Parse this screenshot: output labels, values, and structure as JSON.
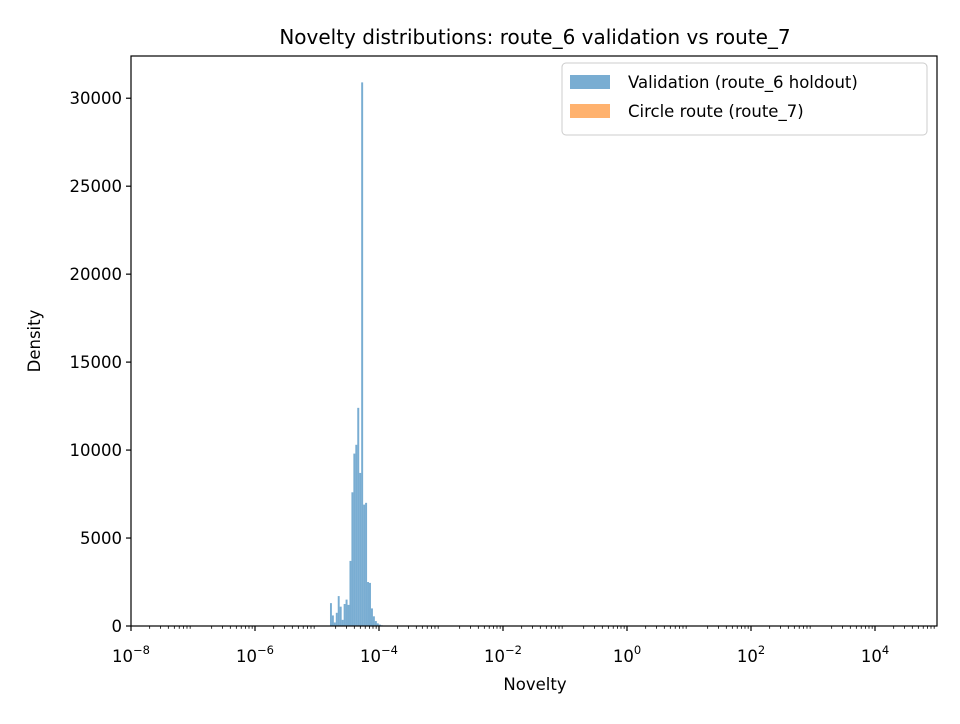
{
  "chart_data": {
    "type": "bar",
    "title": "Novelty distributions: route_6 validation vs route_7",
    "xlabel": "Novelty",
    "ylabel": "Density",
    "x_scale": "log",
    "xlim": [
      1e-08,
      100000.0
    ],
    "ylim": [
      0,
      32400
    ],
    "grid": false,
    "legend_position": "top-right",
    "x_ticks": [
      {
        "value": 1e-08,
        "base": "10",
        "exp": "−8"
      },
      {
        "value": 1e-06,
        "base": "10",
        "exp": "−6"
      },
      {
        "value": 0.0001,
        "base": "10",
        "exp": "−4"
      },
      {
        "value": 0.01,
        "base": "10",
        "exp": "−2"
      },
      {
        "value": 1,
        "base": "10",
        "exp": "0"
      },
      {
        "value": 100,
        "base": "10",
        "exp": "2"
      },
      {
        "value": 10000,
        "base": "10",
        "exp": "4"
      }
    ],
    "y_ticks": [
      0,
      5000,
      10000,
      15000,
      20000,
      25000,
      30000
    ],
    "series": [
      {
        "name": "Validation (route_6 holdout)",
        "color": "#1f77b4",
        "opacity": 0.6,
        "bins": [
          {
            "x0": 1.62e-05,
            "x1": 1.74e-05,
            "value": 1300
          },
          {
            "x0": 1.74e-05,
            "x1": 1.87e-05,
            "value": 600
          },
          {
            "x0": 1.87e-05,
            "x1": 2.01e-05,
            "value": 200
          },
          {
            "x0": 2.01e-05,
            "x1": 2.16e-05,
            "value": 750
          },
          {
            "x0": 2.16e-05,
            "x1": 2.32e-05,
            "value": 1700
          },
          {
            "x0": 2.32e-05,
            "x1": 2.5e-05,
            "value": 1100
          },
          {
            "x0": 2.5e-05,
            "x1": 2.69e-05,
            "value": 350
          },
          {
            "x0": 2.69e-05,
            "x1": 2.89e-05,
            "value": 1250
          },
          {
            "x0": 2.89e-05,
            "x1": 3.11e-05,
            "value": 1500
          },
          {
            "x0": 3.11e-05,
            "x1": 3.34e-05,
            "value": 1200
          },
          {
            "x0": 3.34e-05,
            "x1": 3.59e-05,
            "value": 3700
          },
          {
            "x0": 3.59e-05,
            "x1": 3.86e-05,
            "value": 7600
          },
          {
            "x0": 3.86e-05,
            "x1": 4.15e-05,
            "value": 9800
          },
          {
            "x0": 4.15e-05,
            "x1": 4.46e-05,
            "value": 10300
          },
          {
            "x0": 4.46e-05,
            "x1": 4.8e-05,
            "value": 12400
          },
          {
            "x0": 4.8e-05,
            "x1": 5.16e-05,
            "value": 8700
          },
          {
            "x0": 5.16e-05,
            "x1": 5.55e-05,
            "value": 30900
          },
          {
            "x0": 5.55e-05,
            "x1": 5.97e-05,
            "value": 6900
          },
          {
            "x0": 5.97e-05,
            "x1": 6.42e-05,
            "value": 7000
          },
          {
            "x0": 6.42e-05,
            "x1": 6.9e-05,
            "value": 2500
          },
          {
            "x0": 6.9e-05,
            "x1": 7.42e-05,
            "value": 2450
          },
          {
            "x0": 7.42e-05,
            "x1": 7.98e-05,
            "value": 1000
          },
          {
            "x0": 7.98e-05,
            "x1": 8.58e-05,
            "value": 550
          },
          {
            "x0": 8.58e-05,
            "x1": 9.23e-05,
            "value": 280
          },
          {
            "x0": 9.23e-05,
            "x1": 9.92e-05,
            "value": 150
          },
          {
            "x0": 9.92e-05,
            "x1": 0.000107,
            "value": 80
          },
          {
            "x0": 0.000107,
            "x1": 0.000115,
            "value": 40
          },
          {
            "x0": 0.000115,
            "x1": 0.000123,
            "value": 20
          }
        ]
      },
      {
        "name": "Circle route (route_7)",
        "color": "#ff7f0e",
        "opacity": 0.6,
        "bins": []
      }
    ]
  }
}
